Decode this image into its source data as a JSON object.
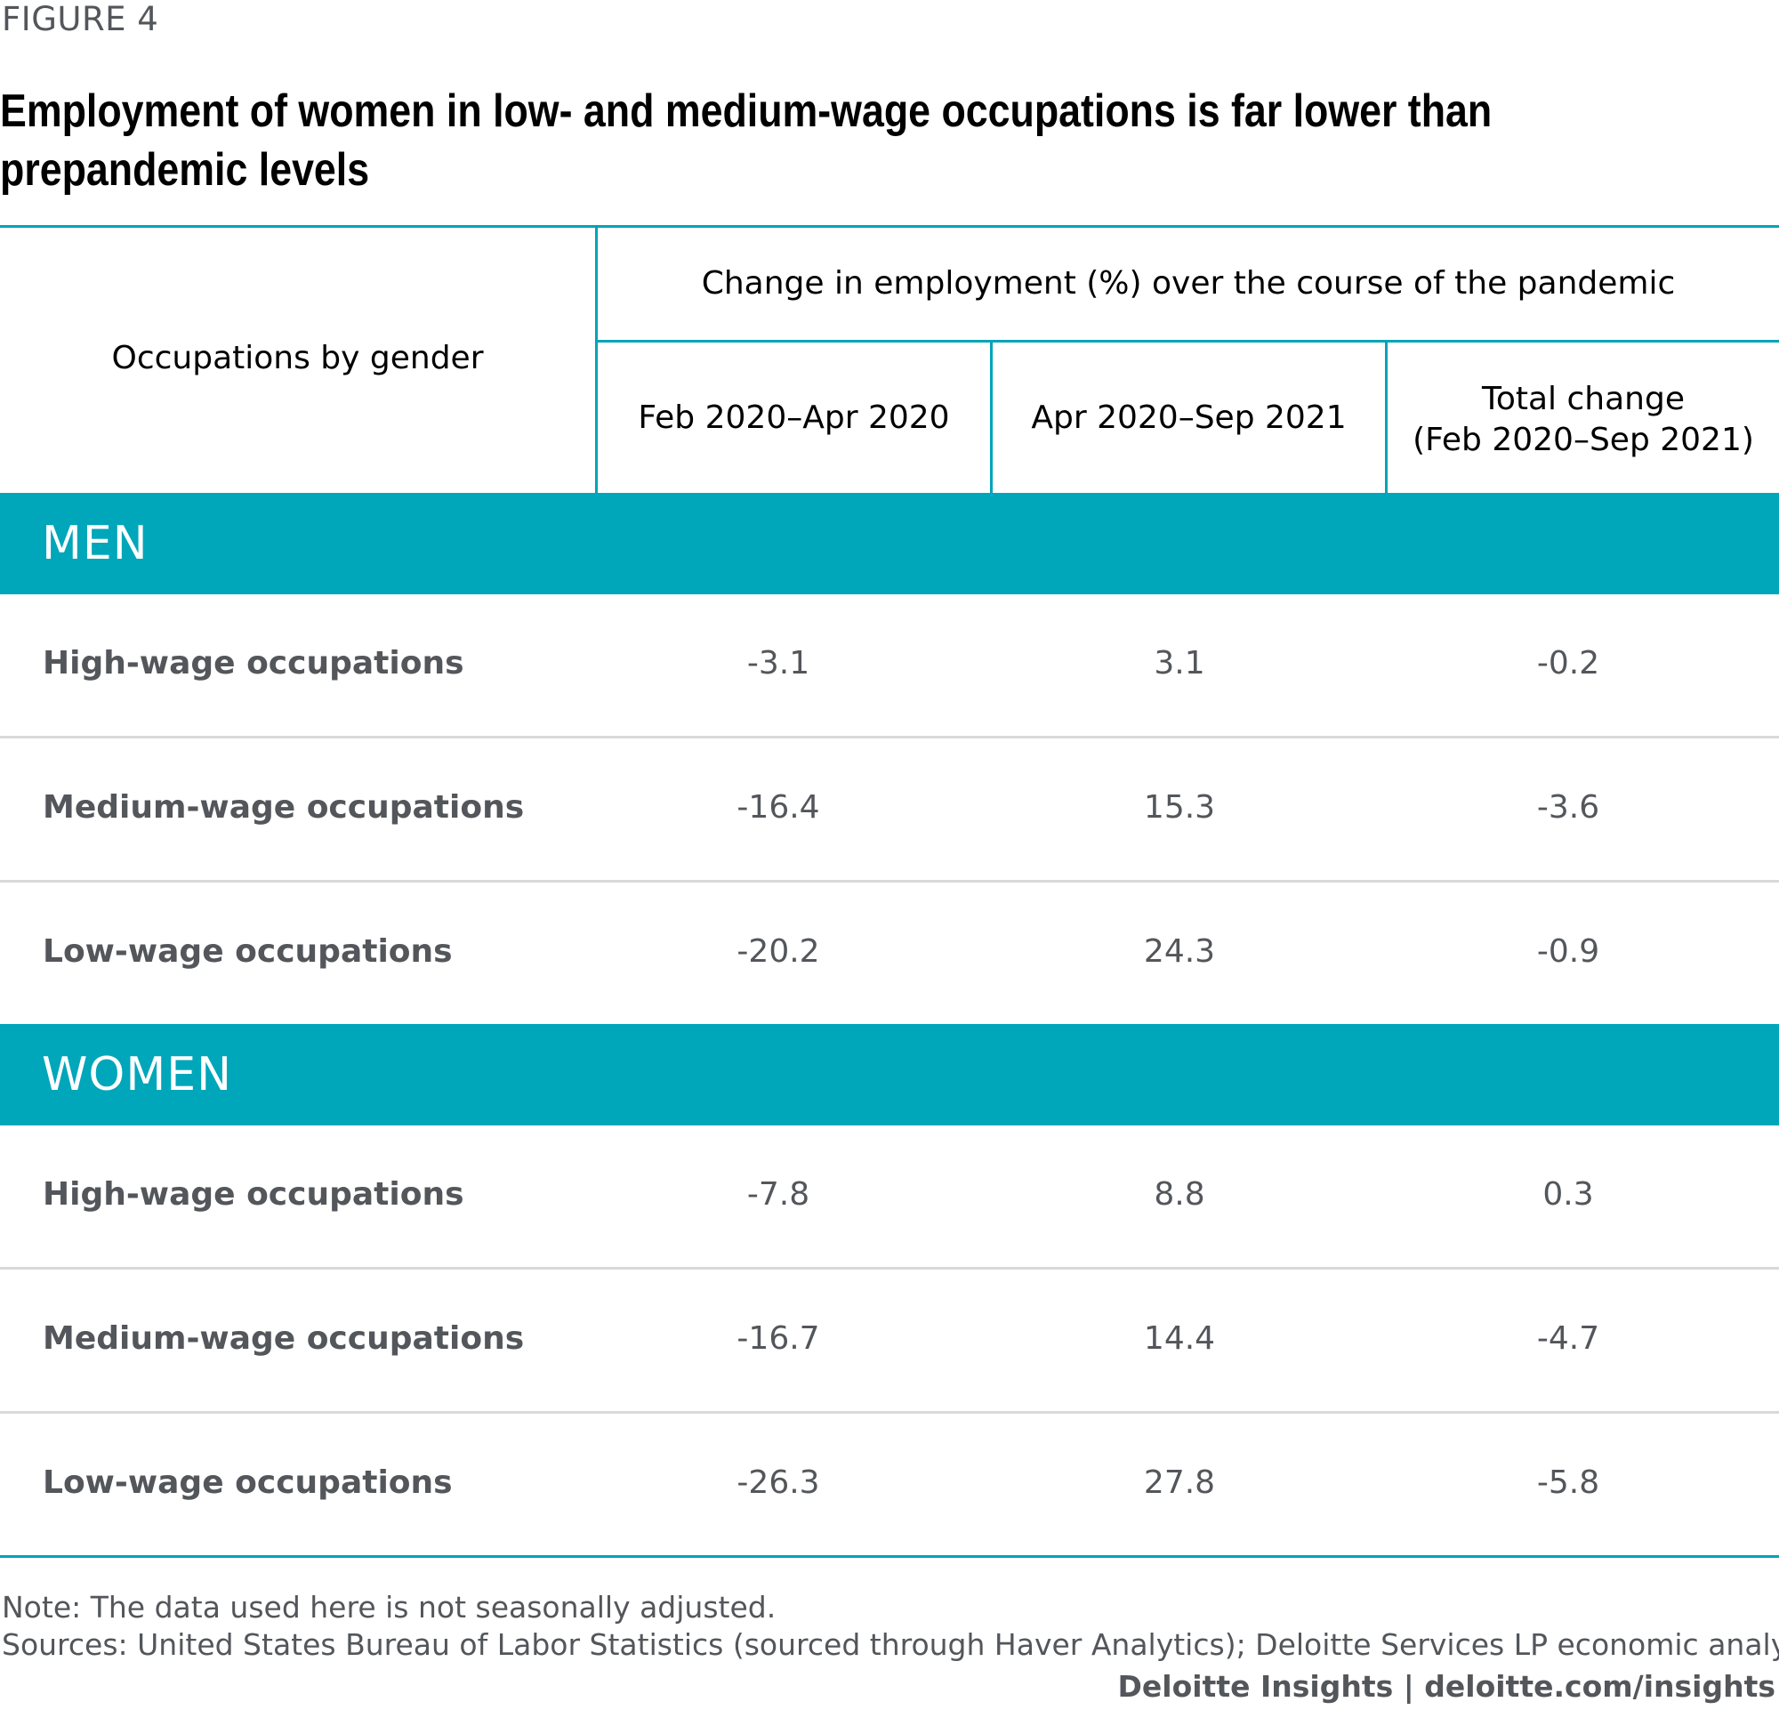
{
  "figure_label": "FIGURE 4",
  "title_line1": "Employment of women in low- and medium-wage occupations is far lower than",
  "title_line2": "prepandemic levels",
  "header": {
    "row_header": "Occupations by gender",
    "group_header": "Change in employment (%) over the course of the pandemic",
    "col1": "Feb 2020–Apr 2020",
    "col2": "Apr 2020–Sep 2021",
    "col3_line1": "Total change",
    "col3_line2": "(Feb 2020–Sep 2021)"
  },
  "groups": [
    {
      "name": "MEN",
      "rows": [
        {
          "label": "High-wage occupations",
          "v1": "-3.1",
          "v2": "3.1",
          "v3": "-0.2"
        },
        {
          "label": "Medium-wage occupations",
          "v1": "-16.4",
          "v2": "15.3",
          "v3": "-3.6"
        },
        {
          "label": "Low-wage occupations",
          "v1": "-20.2",
          "v2": "24.3",
          "v3": "-0.9"
        }
      ]
    },
    {
      "name": "WOMEN",
      "rows": [
        {
          "label": "High-wage occupations",
          "v1": "-7.8",
          "v2": "8.8",
          "v3": "0.3"
        },
        {
          "label": "Medium-wage occupations",
          "v1": "-16.7",
          "v2": "14.4",
          "v3": "-4.7"
        },
        {
          "label": "Low-wage occupations",
          "v1": "-26.3",
          "v2": "27.8",
          "v3": "-5.8"
        }
      ]
    }
  ],
  "note": "Note: The data used here is not seasonally adjusted.",
  "sources": "Sources: United States Bureau of Labor Statistics (sourced through Haver Analytics); Deloitte Services LP economic analysis.",
  "credit": "Deloitte Insights | deloitte.com/insights",
  "colors": {
    "accent": "#00a6b9",
    "text_gray": "#53565a"
  },
  "chart_data": {
    "type": "table",
    "title": "Employment of women in low- and medium-wage occupations is far lower than prepandemic levels",
    "columns": [
      "Occupations by gender",
      "Feb 2020–Apr 2020",
      "Apr 2020–Sep 2021",
      "Total change (Feb 2020–Sep 2021)"
    ],
    "unit": "Change in employment (%)",
    "series": [
      {
        "name": "MEN",
        "rows": [
          {
            "occupation": "High-wage occupations",
            "values": [
              -3.1,
              3.1,
              -0.2
            ]
          },
          {
            "occupation": "Medium-wage occupations",
            "values": [
              -16.4,
              15.3,
              -3.6
            ]
          },
          {
            "occupation": "Low-wage occupations",
            "values": [
              -20.2,
              24.3,
              -0.9
            ]
          }
        ]
      },
      {
        "name": "WOMEN",
        "rows": [
          {
            "occupation": "High-wage occupations",
            "values": [
              -7.8,
              8.8,
              0.3
            ]
          },
          {
            "occupation": "Medium-wage occupations",
            "values": [
              -16.7,
              14.4,
              -4.7
            ]
          },
          {
            "occupation": "Low-wage occupations",
            "values": [
              -26.3,
              27.8,
              -5.8
            ]
          }
        ]
      }
    ]
  }
}
